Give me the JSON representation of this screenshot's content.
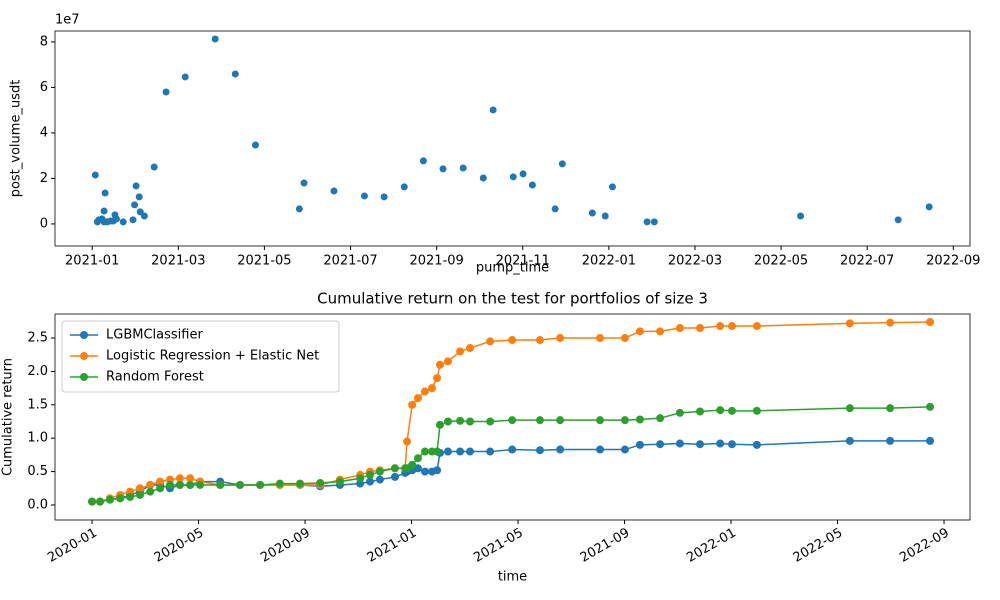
{
  "chart_data": [
    {
      "type": "scatter",
      "x_label": "pump_time",
      "y_label": "post_volume_usdt",
      "y_offset_label": "1e7",
      "color": "#1f77b4",
      "x": [
        2021.006,
        2021.01,
        2021.013,
        2021.019,
        2021.023,
        2021.025,
        2021.023,
        2021.029,
        2021.035,
        2021.041,
        2021.044,
        2021.047,
        2021.06,
        2021.079,
        2021.082,
        2021.085,
        2021.091,
        2021.093,
        2021.101,
        2021.12,
        2021.143,
        2021.18,
        2021.238,
        2021.277,
        2021.316,
        2021.401,
        2021.41,
        2021.468,
        2021.527,
        2021.565,
        2021.604,
        2021.641,
        2021.679,
        2021.718,
        2021.757,
        2021.776,
        2021.815,
        2021.834,
        2021.852,
        2021.896,
        2021.91,
        2021.968,
        2021.993,
        2022.007,
        2022.074,
        2022.088,
        2022.371,
        2022.56,
        2022.62
      ],
      "values": [
        2.15,
        0.09,
        0.18,
        0.22,
        0.57,
        1.36,
        0.09,
        0.09,
        0.13,
        0.13,
        0.4,
        0.22,
        0.09,
        0.18,
        0.84,
        1.67,
        1.19,
        0.53,
        0.35,
        2.5,
        5.8,
        6.46,
        8.13,
        6.59,
        3.47,
        0.66,
        1.8,
        1.45,
        1.23,
        1.19,
        1.63,
        2.77,
        2.42,
        2.46,
        2.02,
        5.01,
        2.07,
        2.2,
        1.71,
        0.66,
        2.64,
        0.48,
        0.35,
        1.63,
        0.09,
        0.09,
        0.35,
        0.18,
        0.75
      ],
      "xlim": [
        2020.928,
        2022.699
      ],
      "ylim": [
        -0.97,
        8.48
      ],
      "xticks": [
        {
          "value": 2021.0,
          "label": "2021-01"
        },
        {
          "value": 2021.1667,
          "label": "2021-03"
        },
        {
          "value": 2021.3333,
          "label": "2021-05"
        },
        {
          "value": 2021.5,
          "label": "2021-07"
        },
        {
          "value": 2021.6667,
          "label": "2021-09"
        },
        {
          "value": 2021.8333,
          "label": "2021-11"
        },
        {
          "value": 2022.0,
          "label": "2022-01"
        },
        {
          "value": 2022.1667,
          "label": "2022-03"
        },
        {
          "value": 2022.3333,
          "label": "2022-05"
        },
        {
          "value": 2022.5,
          "label": "2022-07"
        },
        {
          "value": 2022.6667,
          "label": "2022-09"
        }
      ],
      "yticks": [
        0,
        2,
        4,
        6,
        8
      ],
      "grid": false
    },
    {
      "type": "line",
      "title": "Cumulative return on the test for portfolios of size 3",
      "x_label": "time",
      "y_label": "Cumulative return",
      "legend": "upper left",
      "grid": false,
      "x": [
        2020.0,
        2020.025,
        2020.056,
        2020.088,
        2020.119,
        2020.15,
        2020.182,
        2020.213,
        2020.244,
        2020.275,
        2020.307,
        2020.338,
        2020.401,
        2020.463,
        2020.526,
        2020.588,
        2020.651,
        2020.714,
        2020.776,
        2020.839,
        2020.87,
        2020.901,
        2020.948,
        2020.98,
        2020.986,
        2021.002,
        2021.02,
        2021.042,
        2021.064,
        2021.08,
        2021.089,
        2021.114,
        2021.152,
        2021.183,
        2021.246,
        2021.315,
        2021.402,
        2021.465,
        2021.59,
        2021.668,
        2021.715,
        2021.778,
        2021.84,
        2021.903,
        2021.966,
        2022.003,
        2022.081,
        2022.372,
        2022.498,
        2022.623
      ],
      "series": [
        {
          "name": "LGBMClassifier",
          "color": "#1f77b4",
          "values": [
            0.05,
            0.05,
            0.08,
            0.1,
            0.15,
            0.2,
            0.3,
            0.3,
            0.25,
            0.3,
            0.3,
            0.35,
            0.35,
            0.3,
            0.3,
            0.3,
            0.3,
            0.28,
            0.3,
            0.32,
            0.35,
            0.38,
            0.42,
            0.48,
            0.5,
            0.52,
            0.55,
            0.5,
            0.5,
            0.52,
            0.78,
            0.8,
            0.8,
            0.8,
            0.8,
            0.83,
            0.82,
            0.83,
            0.83,
            0.83,
            0.9,
            0.91,
            0.92,
            0.91,
            0.92,
            0.91,
            0.9,
            0.96,
            0.96,
            0.96
          ]
        },
        {
          "name": "Logistic Regression + Elastic Net",
          "color": "#ff7f0e",
          "values": [
            0.05,
            0.05,
            0.1,
            0.15,
            0.2,
            0.25,
            0.3,
            0.35,
            0.38,
            0.4,
            0.4,
            0.35,
            0.3,
            0.3,
            0.3,
            0.3,
            0.3,
            0.3,
            0.38,
            0.45,
            0.5,
            0.52,
            0.55,
            0.55,
            0.95,
            1.5,
            1.6,
            1.7,
            1.75,
            1.9,
            2.1,
            2.15,
            2.3,
            2.35,
            2.45,
            2.47,
            2.47,
            2.5,
            2.5,
            2.5,
            2.6,
            2.6,
            2.65,
            2.65,
            2.68,
            2.68,
            2.68,
            2.72,
            2.73,
            2.74
          ]
        },
        {
          "name": "Random Forest",
          "color": "#2ca02c",
          "values": [
            0.05,
            0.05,
            0.08,
            0.1,
            0.12,
            0.15,
            0.2,
            0.25,
            0.3,
            0.3,
            0.3,
            0.3,
            0.3,
            0.3,
            0.3,
            0.32,
            0.32,
            0.33,
            0.35,
            0.4,
            0.45,
            0.5,
            0.55,
            0.55,
            0.55,
            0.6,
            0.7,
            0.8,
            0.8,
            0.8,
            1.2,
            1.25,
            1.26,
            1.25,
            1.25,
            1.27,
            1.27,
            1.27,
            1.27,
            1.27,
            1.28,
            1.3,
            1.38,
            1.4,
            1.42,
            1.41,
            1.41,
            1.45,
            1.45,
            1.47
          ]
        }
      ],
      "xlim": [
        2019.884,
        2022.748
      ],
      "ylim": [
        -0.225,
        2.86
      ],
      "xticks": [
        {
          "value": 2020.0,
          "label": "2020-01"
        },
        {
          "value": 2020.3333,
          "label": "2020-05"
        },
        {
          "value": 2020.6667,
          "label": "2020-09"
        },
        {
          "value": 2021.0,
          "label": "2021-01"
        },
        {
          "value": 2021.3333,
          "label": "2021-05"
        },
        {
          "value": 2021.6667,
          "label": "2021-09"
        },
        {
          "value": 2022.0,
          "label": "2022-01"
        },
        {
          "value": 2022.3333,
          "label": "2022-05"
        },
        {
          "value": 2022.6667,
          "label": "2022-09"
        }
      ],
      "yticks": [
        {
          "value": 0,
          "label": "0.0"
        },
        0.5,
        {
          "value": 1,
          "label": "1.0"
        },
        1.5,
        {
          "value": 2,
          "label": "2.0"
        },
        2.5
      ]
    }
  ]
}
